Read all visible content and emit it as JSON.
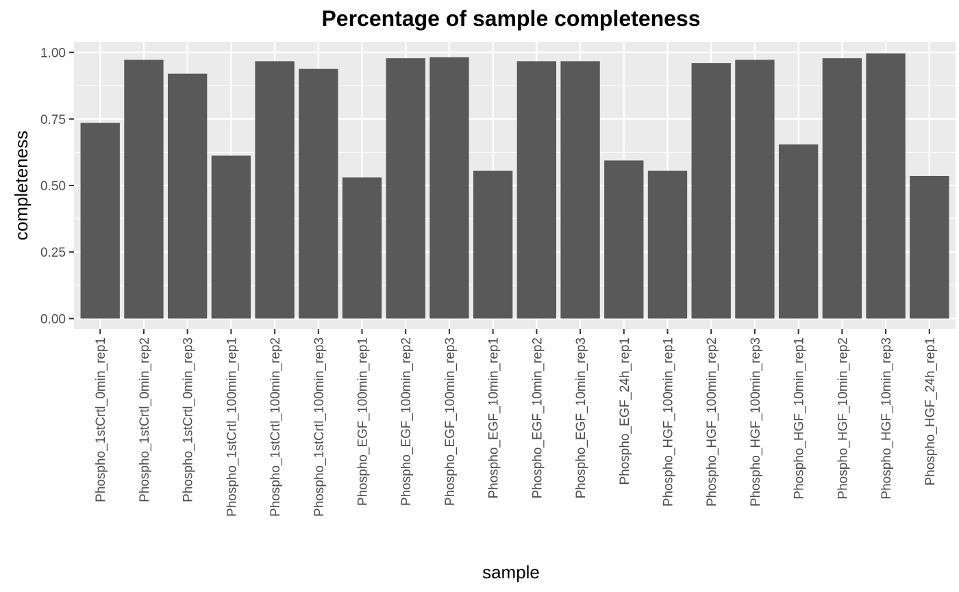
{
  "chart_data": {
    "type": "bar",
    "title": "Percentage of sample completeness",
    "xlabel": "sample",
    "ylabel": "completeness",
    "ylim": [
      -0.04,
      1.04
    ],
    "yticks": [
      0,
      0.25,
      0.5,
      0.75,
      1
    ],
    "ytick_labels": [
      "0.00",
      "0.25",
      "0.50",
      "0.75",
      "1.00"
    ],
    "grid": true,
    "legend": "none",
    "colors": {
      "bar": "#595959",
      "panel": "#ebebeb",
      "grid": "#ffffff",
      "tick": "#333333"
    },
    "categories": [
      "Phospho_1stCrtl_0min_rep1",
      "Phospho_1stCrtl_0min_rep2",
      "Phospho_1stCrtl_0min_rep3",
      "Phospho_1stCrtl_100min_rep1",
      "Phospho_1stCrtl_100min_rep2",
      "Phospho_1stCrtl_100min_rep3",
      "Phospho_EGF_100min_rep1",
      "Phospho_EGF_100min_rep2",
      "Phospho_EGF_100min_rep3",
      "Phospho_EGF_10min_rep1",
      "Phospho_EGF_10min_rep2",
      "Phospho_EGF_10min_rep3",
      "Phospho_EGF_24h_rep1",
      "Phospho_HGF_100min_rep1",
      "Phospho_HGF_100min_rep2",
      "Phospho_HGF_100min_rep3",
      "Phospho_HGF_10min_rep1",
      "Phospho_HGF_10min_rep2",
      "Phospho_HGF_10min_rep3",
      "Phospho_HGF_24h_rep1"
    ],
    "values": [
      0.735,
      0.972,
      0.92,
      0.612,
      0.967,
      0.938,
      0.53,
      0.978,
      0.982,
      0.555,
      0.967,
      0.967,
      0.594,
      0.555,
      0.96,
      0.972,
      0.654,
      0.978,
      0.996,
      0.536
    ]
  }
}
